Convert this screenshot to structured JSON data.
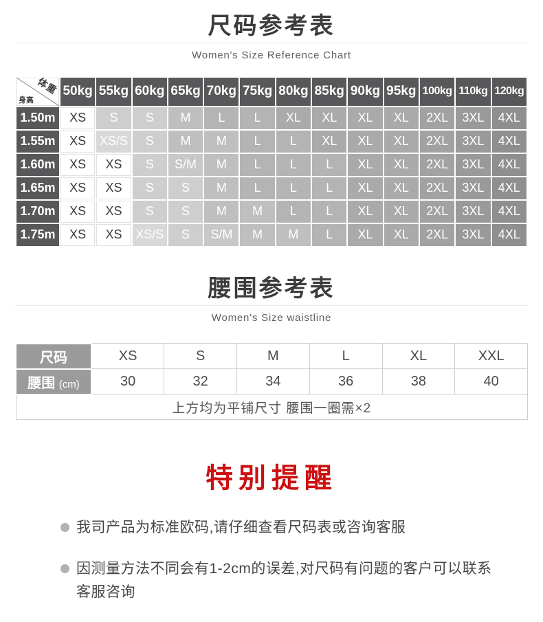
{
  "section1": {
    "title": "尺码参考表",
    "subtitle": "Women's Size Reference Chart"
  },
  "size_chart": {
    "corner": {
      "top": "体重",
      "bottom": "身高"
    },
    "weight_headers": [
      "50kg",
      "55kg",
      "60kg",
      "65kg",
      "70kg",
      "75kg",
      "80kg",
      "85kg",
      "90kg",
      "95kg",
      "100kg",
      "110kg",
      "120kg"
    ],
    "rows": [
      {
        "height": "1.50m",
        "sizes": [
          "XS",
          "S",
          "S",
          "M",
          "L",
          "L",
          "XL",
          "XL",
          "XL",
          "XL",
          "2XL",
          "3XL",
          "4XL"
        ]
      },
      {
        "height": "1.55m",
        "sizes": [
          "XS",
          "XS/S",
          "S",
          "M",
          "M",
          "L",
          "L",
          "XL",
          "XL",
          "XL",
          "2XL",
          "3XL",
          "4XL"
        ]
      },
      {
        "height": "1.60m",
        "sizes": [
          "XS",
          "XS",
          "S",
          "S/M",
          "M",
          "L",
          "L",
          "L",
          "XL",
          "XL",
          "2XL",
          "3XL",
          "4XL"
        ]
      },
      {
        "height": "1.65m",
        "sizes": [
          "XS",
          "XS",
          "S",
          "S",
          "M",
          "L",
          "L",
          "L",
          "XL",
          "XL",
          "2XL",
          "3XL",
          "4XL"
        ]
      },
      {
        "height": "1.70m",
        "sizes": [
          "XS",
          "XS",
          "S",
          "S",
          "M",
          "M",
          "L",
          "L",
          "XL",
          "XL",
          "2XL",
          "3XL",
          "4XL"
        ]
      },
      {
        "height": "1.75m",
        "sizes": [
          "XS",
          "XS",
          "XS/S",
          "S",
          "S/M",
          "M",
          "M",
          "L",
          "XL",
          "XL",
          "2XL",
          "3XL",
          "4XL"
        ]
      }
    ]
  },
  "section2": {
    "title": "腰围参考表",
    "subtitle": "Women's Size waistline"
  },
  "waist_table": {
    "row1_header": "尺码",
    "row2_header": "腰围",
    "row2_unit": "(cm)",
    "sizes": [
      "XS",
      "S",
      "M",
      "L",
      "XL",
      "XXL"
    ],
    "waist_cm": [
      "30",
      "32",
      "34",
      "36",
      "38",
      "40"
    ],
    "note": "上方均为平铺尺寸 腰围一圈需×2"
  },
  "reminder": {
    "title": "特别提醒",
    "items": [
      "我司产品为标准欧码,请仔细查看尺码表或咨询客服",
      "因测量方法不同会有1-2cm的误差,对尺码有问题的客户可以联系客服咨询"
    ]
  },
  "colors": {
    "accent_red": "#cc1111",
    "table_header_gray": "#58585a",
    "waist_header_gray": "#9b9b9b",
    "bullet_gray": "#b2b2b2"
  }
}
